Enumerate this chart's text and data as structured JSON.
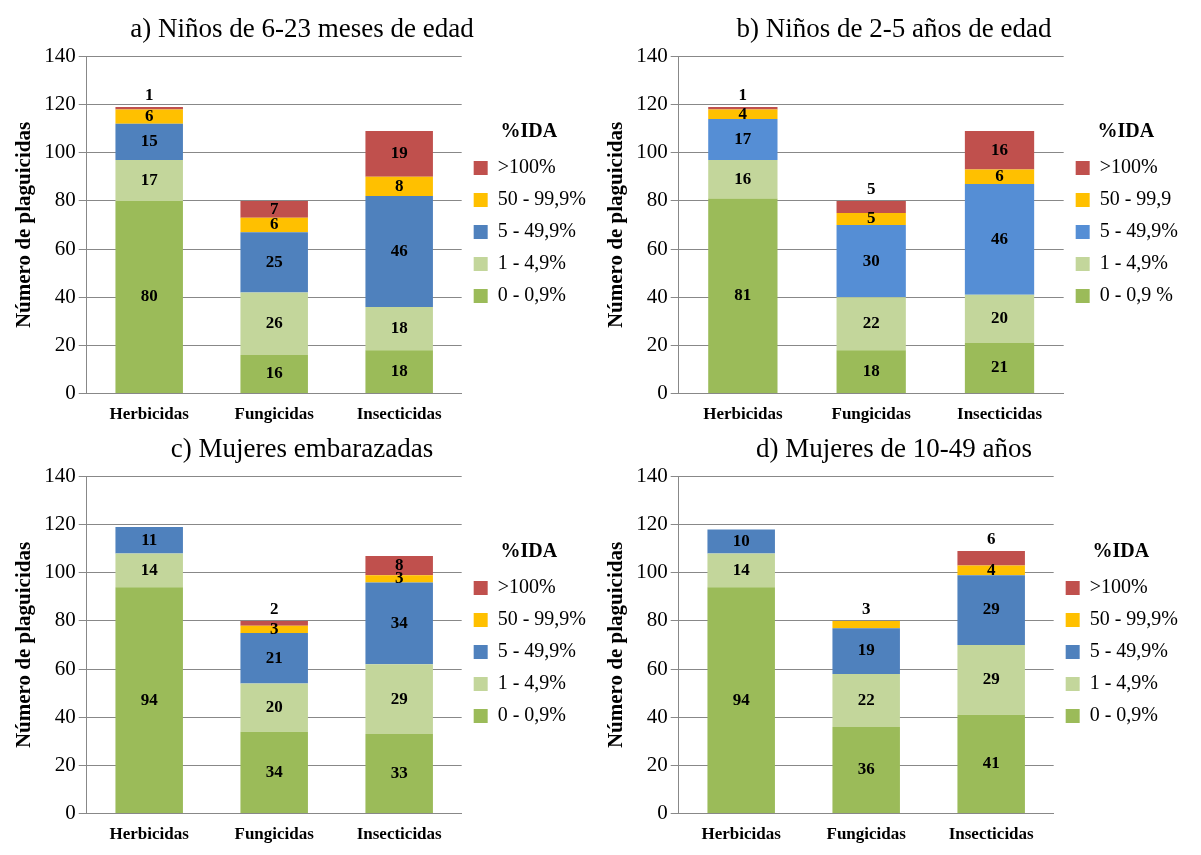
{
  "chart_data": [
    {
      "type": "bar",
      "stacked": true,
      "title": "a) Niños de 6-23 meses de edad",
      "ylabel": "Número de plaguicidas",
      "categories": [
        "Herbicidas",
        "Fungicidas",
        "Insecticidas"
      ],
      "ylim": [
        0,
        140
      ],
      "yticks": [
        0,
        20,
        40,
        60,
        80,
        100,
        120,
        140
      ],
      "grid": "y",
      "legend": "right",
      "legend_title": "%IDA",
      "data_labels": true,
      "series": [
        {
          "name": "0 - 0,9%",
          "color": "#9bbb59",
          "values": [
            80,
            16,
            18
          ]
        },
        {
          "name": "1 - 4,9%",
          "color": "#c3d69b",
          "values": [
            17,
            26,
            18
          ]
        },
        {
          "name": "5 - 49,9%",
          "color": "#4f81bd",
          "values": [
            15,
            25,
            46
          ]
        },
        {
          "name": "50 - 99,9%",
          "color": "#ffc000",
          "values": [
            6,
            6,
            8
          ]
        },
        {
          "name": ">100%",
          "color": "#c0504d",
          "values": [
            1,
            7,
            19
          ]
        }
      ]
    },
    {
      "type": "bar",
      "stacked": true,
      "title": "b) Niños de 2-5 años de edad",
      "ylabel": "Número de plaguicidas",
      "categories": [
        "Herbicidas",
        "Fungicidas",
        "Insecticidas"
      ],
      "ylim": [
        0,
        140
      ],
      "yticks": [
        0,
        20,
        40,
        60,
        80,
        100,
        120,
        140
      ],
      "grid": "y",
      "legend": "right",
      "legend_title": "%IDA",
      "data_labels": true,
      "series": [
        {
          "name": "0 - 0,9 %",
          "color": "#9bbb59",
          "values": [
            81,
            18,
            21
          ]
        },
        {
          "name": "1 - 4,9%",
          "color": "#c3d69b",
          "values": [
            16,
            22,
            20
          ]
        },
        {
          "name": "5 - 49,9%",
          "color": "#558ed5",
          "values": [
            17,
            30,
            46
          ]
        },
        {
          "name": "50 - 99,9",
          "color": "#ffc000",
          "values": [
            4,
            5,
            6
          ]
        },
        {
          "name": ">100%",
          "color": "#c0504d",
          "values": [
            1,
            5,
            16
          ]
        }
      ]
    },
    {
      "type": "bar",
      "stacked": true,
      "title": "c) Mujeres embarazadas",
      "ylabel": "Número de plaguicidas",
      "categories": [
        "Herbicidas",
        "Fungicidas",
        "Insecticidas"
      ],
      "ylim": [
        0,
        140
      ],
      "yticks": [
        0,
        20,
        40,
        60,
        80,
        100,
        120,
        140
      ],
      "grid": "y",
      "legend": "right",
      "legend_title": "%IDA",
      "data_labels": true,
      "series": [
        {
          "name": "0 - 0,9%",
          "color": "#9bbb59",
          "values": [
            94,
            34,
            33
          ]
        },
        {
          "name": "1 - 4,9%",
          "color": "#c3d69b",
          "values": [
            14,
            20,
            29
          ]
        },
        {
          "name": "5 - 49,9%",
          "color": "#4f81bd",
          "values": [
            11,
            21,
            34
          ]
        },
        {
          "name": "50 - 99,9%",
          "color": "#ffc000",
          "values": [
            null,
            3,
            3
          ]
        },
        {
          "name": ">100%",
          "color": "#c0504d",
          "values": [
            null,
            2,
            8
          ]
        }
      ]
    },
    {
      "type": "bar",
      "stacked": true,
      "title": "d) Mujeres de 10-49 años",
      "ylabel": "Número de plaguicidas",
      "categories": [
        "Herbicidas",
        "Fungicidas",
        "Insecticidas"
      ],
      "ylim": [
        0,
        140
      ],
      "yticks": [
        0,
        20,
        40,
        60,
        80,
        100,
        120,
        140
      ],
      "grid": "y",
      "legend": "right",
      "legend_title": "%IDA",
      "data_labels": true,
      "series": [
        {
          "name": "0 - 0,9%",
          "color": "#9bbb59",
          "values": [
            94,
            36,
            41
          ]
        },
        {
          "name": "1 - 4,9%",
          "color": "#c3d69b",
          "values": [
            14,
            22,
            29
          ]
        },
        {
          "name": "5 - 49,9%",
          "color": "#4f81bd",
          "values": [
            10,
            19,
            29
          ]
        },
        {
          "name": "50 - 99,9%",
          "color": "#ffc000",
          "values": [
            null,
            3,
            4
          ]
        },
        {
          "name": ">100%",
          "color": "#c0504d",
          "values": [
            null,
            null,
            6
          ]
        }
      ]
    }
  ]
}
